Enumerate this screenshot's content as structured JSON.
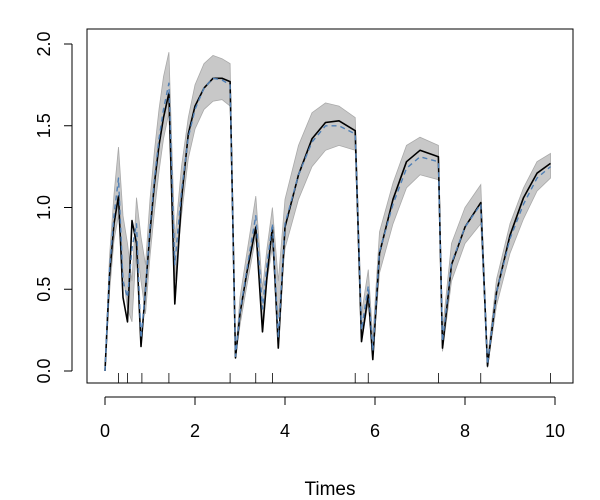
{
  "chart_data": {
    "type": "line",
    "title": "",
    "xlabel": "Times",
    "ylabel": "",
    "xlim": [
      0,
      10
    ],
    "ylim": [
      0,
      2
    ],
    "x_ticks": [
      0,
      2,
      4,
      6,
      8,
      10
    ],
    "y_ticks": [
      0,
      0.5,
      1,
      1.5,
      2
    ],
    "x_tick_labels": [
      "0",
      "2",
      "4",
      "6",
      "8",
      "10"
    ],
    "y_tick_labels": [
      "0.0",
      "0.5",
      "1.0",
      "1.5",
      "2.0"
    ],
    "grid": false,
    "legend": "none",
    "rug_x": [
      0.3,
      0.5,
      0.82,
      1.42,
      2.78,
      3.35,
      3.72,
      5.56,
      5.85,
      7.41,
      8.35,
      9.9
    ],
    "series": [
      {
        "style": "band",
        "color": "#c8c8c8",
        "x": [
          0,
          0.1,
          0.2,
          0.3,
          0.4,
          0.5,
          0.6,
          0.7,
          0.8,
          0.9,
          1.0,
          1.1,
          1.2,
          1.3,
          1.42,
          1.55,
          1.7,
          1.85,
          2.0,
          2.2,
          2.4,
          2.6,
          2.78,
          2.9,
          3.0,
          3.15,
          3.35,
          3.5,
          3.6,
          3.72,
          3.85,
          4.0,
          4.3,
          4.6,
          4.9,
          5.2,
          5.56,
          5.7,
          5.85,
          5.95,
          6.1,
          6.4,
          6.7,
          7.0,
          7.41,
          7.5,
          7.7,
          8.0,
          8.35,
          8.5,
          8.7,
          9.0,
          9.3,
          9.6,
          9.9
        ],
        "upper": [
          0.02,
          0.7,
          1.08,
          1.37,
          0.95,
          0.78,
          0.55,
          1.06,
          0.82,
          0.65,
          1.05,
          1.35,
          1.6,
          1.8,
          1.95,
          0.8,
          1.25,
          1.55,
          1.75,
          1.88,
          1.93,
          1.91,
          1.88,
          0.1,
          0.45,
          0.72,
          1.07,
          0.5,
          0.75,
          1.0,
          0.55,
          1.05,
          1.38,
          1.58,
          1.64,
          1.62,
          1.55,
          0.35,
          0.62,
          0.2,
          0.85,
          1.15,
          1.38,
          1.43,
          1.38,
          0.25,
          0.78,
          1.0,
          1.14,
          0.07,
          0.56,
          0.9,
          1.12,
          1.28,
          1.33
        ],
        "lower": [
          0.0,
          0.48,
          0.8,
          0.95,
          0.6,
          0.38,
          0.3,
          0.78,
          0.55,
          0.35,
          0.7,
          0.98,
          1.22,
          1.42,
          1.58,
          0.55,
          0.95,
          1.3,
          1.48,
          1.6,
          1.65,
          1.66,
          1.62,
          0.08,
          0.28,
          0.52,
          0.82,
          0.3,
          0.55,
          0.76,
          0.32,
          0.75,
          1.05,
          1.25,
          1.35,
          1.38,
          1.35,
          0.18,
          0.42,
          0.08,
          0.6,
          0.9,
          1.12,
          1.2,
          1.17,
          0.12,
          0.55,
          0.78,
          0.9,
          0.02,
          0.4,
          0.72,
          0.93,
          1.1,
          1.18
        ]
      },
      {
        "style": "solid",
        "color": "#000000",
        "x": [
          0,
          0.1,
          0.2,
          0.3,
          0.4,
          0.5,
          0.6,
          0.7,
          0.8,
          0.9,
          1.0,
          1.1,
          1.2,
          1.3,
          1.42,
          1.55,
          1.7,
          1.85,
          2.0,
          2.2,
          2.4,
          2.6,
          2.78,
          2.9,
          3.0,
          3.15,
          3.35,
          3.5,
          3.6,
          3.72,
          3.85,
          4.0,
          4.3,
          4.6,
          4.9,
          5.2,
          5.56,
          5.7,
          5.85,
          5.95,
          6.1,
          6.4,
          6.7,
          7.0,
          7.41,
          7.5,
          7.7,
          8.0,
          8.35,
          8.5,
          8.7,
          9.0,
          9.3,
          9.6,
          9.9
        ],
        "y": [
          0.0,
          0.58,
          0.9,
          1.07,
          0.45,
          0.3,
          0.92,
          0.78,
          0.15,
          0.5,
          0.85,
          1.15,
          1.38,
          1.55,
          1.7,
          0.41,
          1.05,
          1.45,
          1.62,
          1.73,
          1.79,
          1.79,
          1.77,
          0.08,
          0.35,
          0.6,
          0.88,
          0.24,
          0.58,
          0.88,
          0.14,
          0.88,
          1.2,
          1.42,
          1.52,
          1.53,
          1.47,
          0.18,
          0.47,
          0.07,
          0.72,
          1.05,
          1.28,
          1.35,
          1.31,
          0.14,
          0.65,
          0.88,
          1.03,
          0.03,
          0.48,
          0.83,
          1.06,
          1.21,
          1.27
        ]
      },
      {
        "style": "dashed",
        "color": "#4f7fb5",
        "x": [
          0,
          0.1,
          0.2,
          0.3,
          0.4,
          0.5,
          0.6,
          0.7,
          0.8,
          0.9,
          1.0,
          1.1,
          1.2,
          1.3,
          1.42,
          1.55,
          1.7,
          1.85,
          2.0,
          2.2,
          2.4,
          2.6,
          2.78,
          2.9,
          3.0,
          3.15,
          3.35,
          3.5,
          3.6,
          3.72,
          3.85,
          4.0,
          4.3,
          4.6,
          4.9,
          5.2,
          5.56,
          5.7,
          5.85,
          5.95,
          6.1,
          6.4,
          6.7,
          7.0,
          7.41,
          7.5,
          7.7,
          8.0,
          8.35,
          8.5,
          8.7,
          9.0,
          9.3,
          9.6,
          9.9
        ],
        "y": [
          0.0,
          0.62,
          0.95,
          1.18,
          0.55,
          0.45,
          0.75,
          0.9,
          0.2,
          0.5,
          0.88,
          1.18,
          1.42,
          1.6,
          1.76,
          0.65,
          1.1,
          1.43,
          1.6,
          1.73,
          1.79,
          1.78,
          1.75,
          0.09,
          0.36,
          0.62,
          0.95,
          0.38,
          0.65,
          0.9,
          0.2,
          0.9,
          1.2,
          1.4,
          1.5,
          1.5,
          1.45,
          0.25,
          0.52,
          0.12,
          0.73,
          1.02,
          1.24,
          1.31,
          1.28,
          0.18,
          0.66,
          0.88,
          1.02,
          0.04,
          0.48,
          0.81,
          1.02,
          1.18,
          1.25
        ]
      }
    ]
  }
}
